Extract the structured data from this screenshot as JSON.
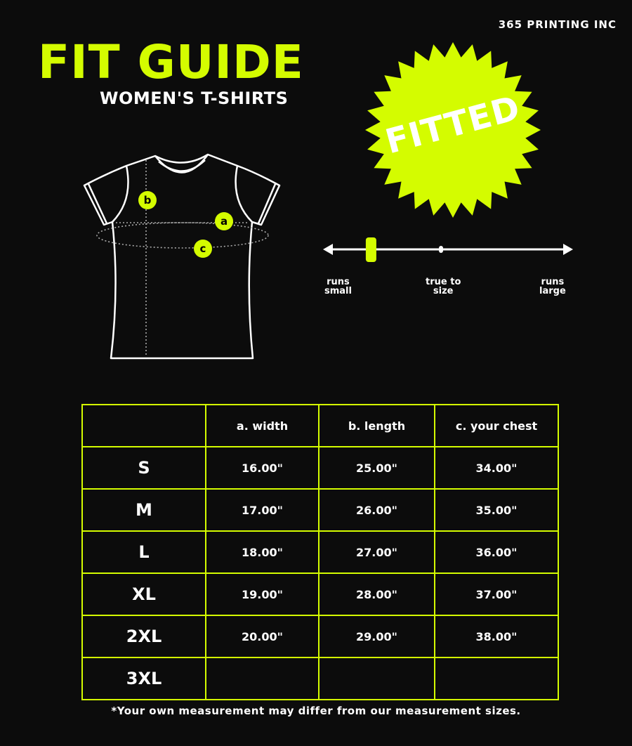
{
  "brand": "365 PRINTING INC",
  "title": "FIT GUIDE",
  "subtitle": "WOMEN'S T-SHIRTS",
  "badge": "FITTED",
  "colors": {
    "accent": "#d4fc00",
    "background": "#0c0c0c",
    "text": "#ffffff"
  },
  "diagram": {
    "labels": [
      "b",
      "a",
      "c"
    ]
  },
  "fit_scale": {
    "position": 0.18,
    "labels": {
      "left": [
        "runs",
        "small"
      ],
      "middle": [
        "true to",
        "size"
      ],
      "right": [
        "runs",
        "large"
      ]
    }
  },
  "table": {
    "headers": [
      "",
      "a. width",
      "b. length",
      "c. your chest"
    ],
    "rows": [
      [
        "S",
        "16.00\"",
        "25.00\"",
        "34.00\""
      ],
      [
        "M",
        "17.00\"",
        "26.00\"",
        "35.00\""
      ],
      [
        "L",
        "18.00\"",
        "27.00\"",
        "36.00\""
      ],
      [
        "XL",
        "19.00\"",
        "28.00\"",
        "37.00\""
      ],
      [
        "2XL",
        "20.00\"",
        "29.00\"",
        "38.00\""
      ],
      [
        "3XL",
        "",
        "",
        ""
      ]
    ]
  },
  "footnote": "*Your own measurement may differ from our measurement sizes."
}
